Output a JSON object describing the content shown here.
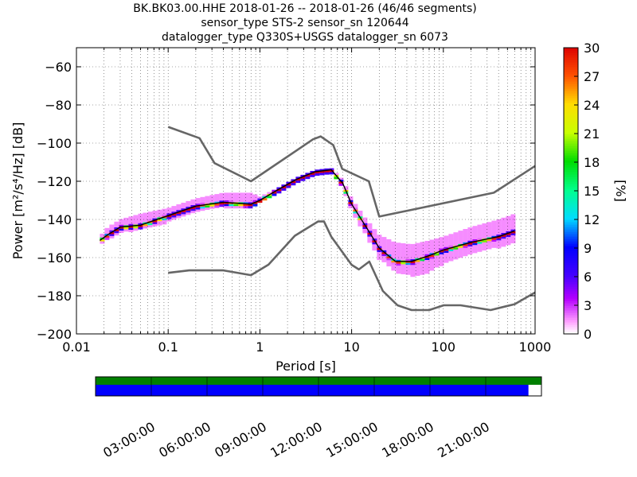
{
  "title": {
    "line1": "BK.BK03.00.HHE   2018-01-26 -- 2018-01-26  (46/46 segments)",
    "line2": "sensor_type STS-2 sensor_sn 120644",
    "line3": "datalogger_type Q330S+USGS datalogger_sn 6073"
  },
  "chart_data": {
    "type": "heatmap",
    "xlabel": "Period [s]",
    "ylabel": "Power [m²/s⁴/Hz] [dB]",
    "xscale": "log",
    "xlim": [
      0.01,
      1000
    ],
    "ylim": [
      -200,
      -50
    ],
    "x_ticks": [
      0.01,
      0.1,
      1,
      10,
      100,
      1000
    ],
    "x_tick_labels": [
      "0.01",
      "0.1",
      "1",
      "10",
      "100",
      "1000"
    ],
    "y_ticks": [
      -200,
      -180,
      -160,
      -140,
      -120,
      -100,
      -80,
      -60
    ],
    "y_tick_labels": [
      "−200",
      "−180",
      "−160",
      "−140",
      "−120",
      "−100",
      "−80",
      "−60"
    ],
    "grid": true,
    "colorbar": {
      "label": "[%]",
      "range": [
        0,
        30
      ],
      "ticks": [
        0,
        3,
        6,
        9,
        12,
        15,
        18,
        21,
        24,
        27,
        30
      ]
    },
    "noise_model_high": {
      "x": [
        0.1,
        0.22,
        0.32,
        0.8,
        3.8,
        4.6,
        6.3,
        7.9,
        15.4,
        20,
        354.8,
        1000
      ],
      "y": [
        -91.5,
        -97.4,
        -110.5,
        -120,
        -98,
        -96.5,
        -101,
        -113.5,
        -120,
        -138.5,
        -126,
        -112
      ]
    },
    "noise_model_low": {
      "x": [
        0.1,
        0.17,
        0.4,
        0.8,
        1.24,
        2.4,
        4.3,
        5,
        6,
        10,
        12,
        15.6,
        21.9,
        31.6,
        45,
        70,
        101,
        154,
        328,
        600,
        1000
      ],
      "y": [
        -168,
        -166.7,
        -166.7,
        -169.2,
        -163.7,
        -148.6,
        -141.1,
        -141.1,
        -149,
        -163.8,
        -166.2,
        -162.1,
        -177.5,
        -185,
        -187.5,
        -187.5,
        -185,
        -185,
        -187.5,
        -184.4,
        -178.3
      ]
    },
    "psd_mode": {
      "x": [
        0.018,
        0.022,
        0.03,
        0.05,
        0.1,
        0.2,
        0.4,
        0.8,
        1,
        1.5,
        2.5,
        4,
        6,
        8,
        10,
        14,
        20,
        30,
        45,
        70,
        100,
        200,
        400,
        600
      ],
      "y": [
        -151,
        -148,
        -144,
        -143,
        -138,
        -133,
        -131,
        -132,
        -130,
        -125,
        -119,
        -115,
        -114,
        -121,
        -132,
        -143,
        -155,
        -162,
        -162,
        -159,
        -156,
        -152,
        -149,
        -146
      ]
    },
    "psd_lower": {
      "x": [
        0.018,
        0.022,
        0.03,
        0.05,
        0.1,
        0.2,
        0.4,
        0.8,
        1,
        1.5,
        2.5,
        4,
        6,
        8,
        10,
        14,
        20,
        30,
        45,
        70,
        100,
        200,
        400,
        600
      ],
      "y": [
        -153,
        -150,
        -146,
        -145,
        -141,
        -135,
        -133,
        -133,
        -131,
        -126,
        -120,
        -116,
        -115,
        -123,
        -135,
        -147,
        -160,
        -167,
        -169,
        -167,
        -163,
        -157,
        -154,
        -151
      ]
    },
    "psd_upper": {
      "x": [
        0.018,
        0.022,
        0.03,
        0.05,
        0.1,
        0.2,
        0.4,
        0.8,
        1,
        1.5,
        2.5,
        4,
        6,
        8,
        10,
        14,
        20,
        30,
        45,
        70,
        100,
        200,
        400,
        600
      ],
      "y": [
        -149,
        -144,
        -140,
        -137,
        -134,
        -129,
        -126,
        -126,
        -128,
        -124,
        -118,
        -114,
        -113,
        -119,
        -129,
        -139,
        -148,
        -152,
        -153,
        -151,
        -149,
        -144,
        -140,
        -137
      ]
    }
  },
  "timeline": {
    "tick_labels": [
      "03:00:00",
      "06:00:00",
      "09:00:00",
      "12:00:00",
      "15:00:00",
      "18:00:00",
      "21:00:00"
    ],
    "tick_hours": [
      3,
      6,
      9,
      12,
      15,
      18,
      21
    ],
    "data_coverage_end_hour": 23.3,
    "range_hours": [
      0,
      24
    ],
    "colors": {
      "segments": "#008000",
      "data": "#0000ff"
    }
  }
}
